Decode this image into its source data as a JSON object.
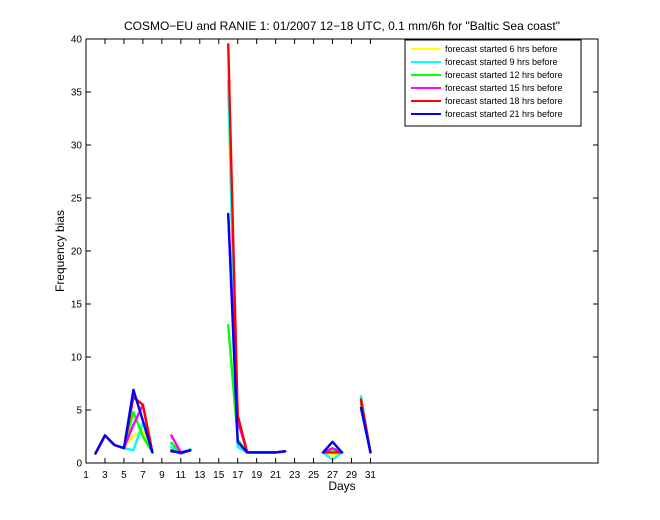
{
  "chart_data": {
    "type": "line",
    "title": "COSMO−EU and RANIE 1: 01/2007 12−18 UTC, 0.1 mm/6h for \"Baltic Sea coast\"",
    "xlabel": "Days",
    "ylabel": "Frequency bias",
    "xlim": [
      1,
      55
    ],
    "ylim": [
      0,
      40
    ],
    "xticks": [
      1,
      3,
      5,
      7,
      9,
      11,
      13,
      15,
      17,
      19,
      21,
      23,
      25,
      27,
      29,
      31
    ],
    "yticks": [
      0,
      5,
      10,
      15,
      20,
      25,
      30,
      35,
      40
    ],
    "grid": false,
    "legend_position": "top-right",
    "series": [
      {
        "name": "forecast started 6 hrs before",
        "color": "#ffff00",
        "points": [
          [
            2,
            0.9
          ],
          [
            3,
            2.6
          ],
          [
            4,
            1.7
          ],
          [
            5,
            1.4
          ],
          [
            6,
            2.6
          ],
          [
            7,
            3.0
          ],
          [
            8,
            1.0
          ],
          [
            null,
            null
          ],
          [
            10,
            1.3
          ],
          [
            11,
            1.0
          ],
          [
            12,
            1.1
          ],
          [
            null,
            null
          ],
          [
            16,
            35.0
          ],
          [
            17,
            1.8
          ],
          [
            18,
            1.0
          ],
          [
            19,
            1.0
          ],
          [
            20,
            1.0
          ],
          [
            21,
            1.0
          ],
          [
            22,
            1.1
          ],
          [
            null,
            null
          ],
          [
            26,
            1.0
          ],
          [
            27,
            0.7
          ],
          [
            28,
            1.0
          ],
          [
            null,
            null
          ],
          [
            30,
            5.5
          ],
          [
            31,
            1.0
          ]
        ]
      },
      {
        "name": "forecast started 9 hrs before",
        "color": "#00ffff",
        "points": [
          [
            2,
            0.9
          ],
          [
            3,
            2.6
          ],
          [
            4,
            1.7
          ],
          [
            5,
            1.4
          ],
          [
            6,
            1.2
          ],
          [
            7,
            3.8
          ],
          [
            8,
            1.0
          ],
          [
            null,
            null
          ],
          [
            10,
            1.5
          ],
          [
            11,
            0.9
          ],
          [
            12,
            1.3
          ],
          [
            null,
            null
          ],
          [
            16,
            36.0
          ],
          [
            17,
            1.5
          ],
          [
            18,
            1.0
          ],
          [
            19,
            1.0
          ],
          [
            20,
            1.0
          ],
          [
            21,
            1.0
          ],
          [
            22,
            1.1
          ],
          [
            null,
            null
          ],
          [
            26,
            1.0
          ],
          [
            27,
            0.3
          ],
          [
            28,
            1.0
          ],
          [
            null,
            null
          ],
          [
            30,
            6.3
          ],
          [
            31,
            1.0
          ]
        ]
      },
      {
        "name": "forecast started 12 hrs before",
        "color": "#00ff00",
        "points": [
          [
            2,
            0.9
          ],
          [
            3,
            2.6
          ],
          [
            4,
            1.7
          ],
          [
            5,
            1.4
          ],
          [
            6,
            4.8
          ],
          [
            7,
            2.5
          ],
          [
            8,
            1.0
          ],
          [
            null,
            null
          ],
          [
            10,
            1.9
          ],
          [
            11,
            0.9
          ],
          [
            12,
            1.2
          ],
          [
            null,
            null
          ],
          [
            16,
            13.0
          ],
          [
            17,
            2.2
          ],
          [
            18,
            1.0
          ],
          [
            19,
            1.0
          ],
          [
            20,
            1.0
          ],
          [
            21,
            1.0
          ],
          [
            22,
            1.1
          ],
          [
            null,
            null
          ],
          [
            26,
            1.0
          ],
          [
            27,
            1.3
          ],
          [
            28,
            1.0
          ],
          [
            null,
            null
          ],
          [
            30,
            5.6
          ],
          [
            31,
            1.0
          ]
        ]
      },
      {
        "name": "forecast started 15 hrs before",
        "color": "#ff00ff",
        "points": [
          [
            2,
            0.9
          ],
          [
            3,
            2.6
          ],
          [
            4,
            1.7
          ],
          [
            5,
            1.4
          ],
          [
            6,
            3.6
          ],
          [
            7,
            5.5
          ],
          [
            8,
            1.0
          ],
          [
            null,
            null
          ],
          [
            10,
            2.6
          ],
          [
            11,
            1.0
          ],
          [
            12,
            1.2
          ],
          [
            null,
            null
          ],
          [
            16,
            23.5
          ],
          [
            17,
            4.0
          ],
          [
            18,
            1.0
          ],
          [
            19,
            1.0
          ],
          [
            20,
            1.0
          ],
          [
            21,
            1.0
          ],
          [
            22,
            1.1
          ],
          [
            null,
            null
          ],
          [
            26,
            1.0
          ],
          [
            27,
            1.4
          ],
          [
            28,
            1.0
          ],
          [
            null,
            null
          ],
          [
            30,
            5.9
          ],
          [
            31,
            1.0
          ]
        ]
      },
      {
        "name": "forecast started 18 hrs before",
        "color": "#ff0000",
        "points": [
          [
            2,
            0.9
          ],
          [
            3,
            2.6
          ],
          [
            4,
            1.7
          ],
          [
            5,
            1.4
          ],
          [
            6,
            6.2
          ],
          [
            7,
            5.5
          ],
          [
            8,
            1.0
          ],
          [
            null,
            null
          ],
          [
            10,
            1.2
          ],
          [
            11,
            0.9
          ],
          [
            12,
            1.2
          ],
          [
            null,
            null
          ],
          [
            16,
            39.5
          ],
          [
            17,
            4.5
          ],
          [
            18,
            1.0
          ],
          [
            19,
            1.0
          ],
          [
            20,
            1.0
          ],
          [
            21,
            1.0
          ],
          [
            22,
            1.1
          ],
          [
            null,
            null
          ],
          [
            26,
            1.0
          ],
          [
            27,
            1.0
          ],
          [
            28,
            1.0
          ],
          [
            null,
            null
          ],
          [
            30,
            6.0
          ],
          [
            31,
            1.0
          ]
        ]
      },
      {
        "name": "forecast started 21 hrs before",
        "color": "#0000ff",
        "points": [
          [
            2,
            0.9
          ],
          [
            3,
            2.6
          ],
          [
            4,
            1.7
          ],
          [
            5,
            1.4
          ],
          [
            6,
            6.9
          ],
          [
            7,
            4.0
          ],
          [
            8,
            1.0
          ],
          [
            null,
            null
          ],
          [
            10,
            1.1
          ],
          [
            11,
            1.0
          ],
          [
            12,
            1.2
          ],
          [
            null,
            null
          ],
          [
            16,
            23.5
          ],
          [
            17,
            2.0
          ],
          [
            18,
            1.0
          ],
          [
            19,
            1.0
          ],
          [
            20,
            1.0
          ],
          [
            21,
            1.0
          ],
          [
            22,
            1.1
          ],
          [
            null,
            null
          ],
          [
            26,
            1.0
          ],
          [
            27,
            2.0
          ],
          [
            28,
            1.0
          ],
          [
            null,
            null
          ],
          [
            30,
            5.2
          ],
          [
            31,
            1.0
          ]
        ]
      }
    ]
  }
}
